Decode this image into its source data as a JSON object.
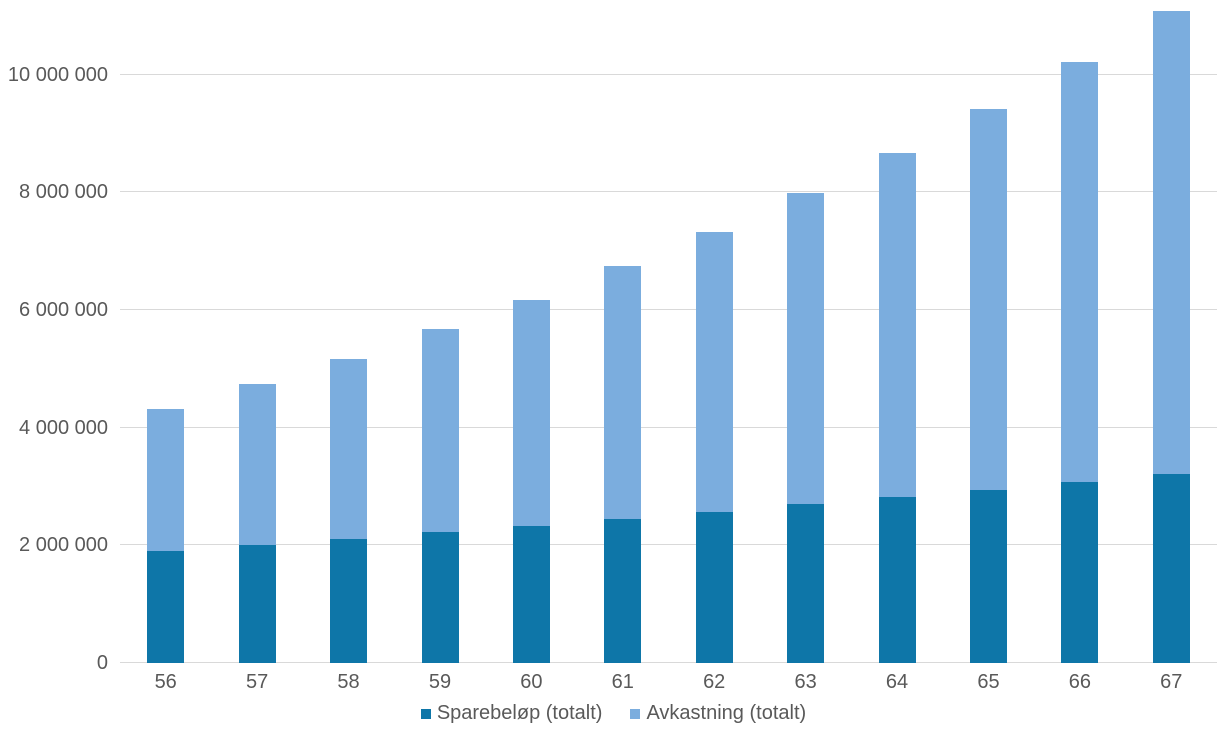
{
  "chart_data": {
    "type": "bar",
    "subtype": "stacked-vertical",
    "title": "",
    "xlabel": "",
    "ylabel": "",
    "categories": [
      "56",
      "57",
      "58",
      "59",
      "60",
      "61",
      "62",
      "63",
      "64",
      "65",
      "66",
      "67"
    ],
    "series": [
      {
        "name": "Sparebeløp (totalt)",
        "color": "#0e76a8",
        "values": [
          1910000,
          2010000,
          2110000,
          2230000,
          2330000,
          2450000,
          2570000,
          2710000,
          2820000,
          2940000,
          3080000,
          3210000
        ]
      },
      {
        "name": "Avkastning (totalt)",
        "color": "#7badde",
        "values": [
          2400000,
          2730000,
          3060000,
          3440000,
          3840000,
          4290000,
          4760000,
          5270000,
          5850000,
          6470000,
          7140000,
          7870000
        ]
      }
    ],
    "stacked_totals": [
      4310000,
      4740000,
      5170000,
      5670000,
      6170000,
      6740000,
      7330000,
      7980000,
      8670000,
      9410000,
      10220000,
      11080000
    ],
    "ylim": [
      0,
      11270000
    ],
    "yticks": [
      0,
      2000000,
      4000000,
      6000000,
      8000000,
      10000000
    ],
    "ytick_labels": [
      "0",
      "2 000 000",
      "4 000 000",
      "6 000 000",
      "8 000 000",
      "10 000 000"
    ],
    "grid": true,
    "legend_position": "bottom"
  },
  "colors": {
    "gridline": "#d9d9d9",
    "axis_label": "#595959",
    "background": "#ffffff"
  }
}
